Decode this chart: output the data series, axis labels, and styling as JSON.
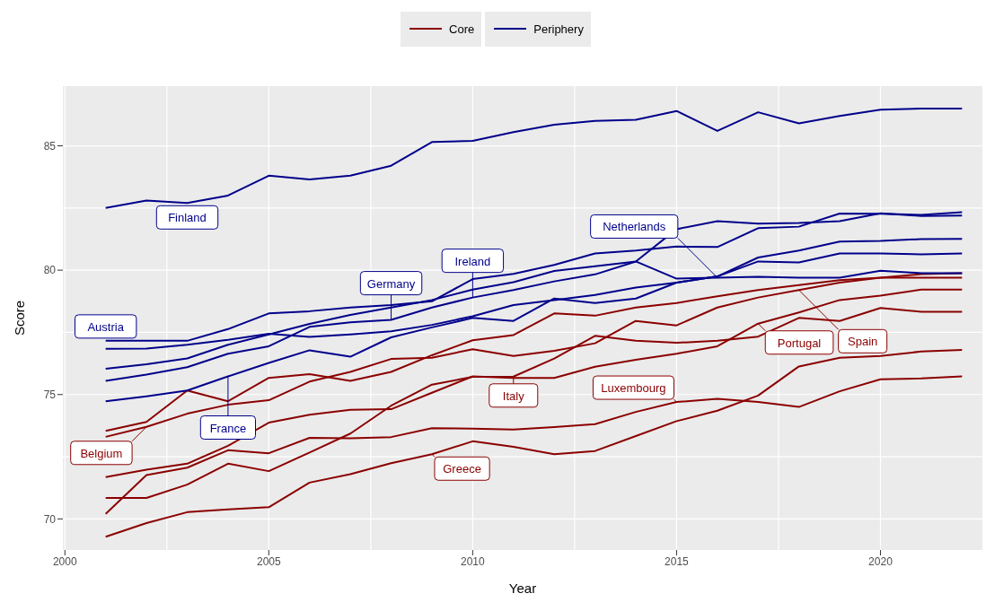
{
  "chart_data": {
    "type": "line",
    "xlabel": "Year",
    "ylabel": "Score",
    "x": [
      2001,
      2002,
      2003,
      2004,
      2005,
      2006,
      2007,
      2008,
      2009,
      2010,
      2011,
      2012,
      2013,
      2014,
      2015,
      2016,
      2017,
      2018,
      2019,
      2020,
      2021,
      2022
    ],
    "series": [
      {
        "name": "Core",
        "color": "#8b0000",
        "values": [
          73.54,
          73.9,
          75.16,
          74.73,
          75.67,
          75.82,
          75.55,
          75.91,
          76.58,
          77.18,
          77.39,
          78.26,
          78.17,
          78.5,
          78.68,
          78.95,
          79.2,
          79.4,
          79.6,
          79.7,
          79.84,
          79.88
        ]
      },
      {
        "color": "#8b0000",
        "values": [
          73.3,
          73.7,
          74.23,
          74.59,
          74.77,
          75.52,
          75.91,
          76.43,
          76.48,
          76.82,
          76.55,
          76.76,
          77.06,
          77.96,
          77.78,
          78.5,
          78.9,
          79.2,
          79.5,
          79.7,
          79.7,
          79.7
        ]
      },
      {
        "color": "#8b0000",
        "values": [
          71.68,
          71.98,
          72.22,
          72.94,
          73.87,
          74.19,
          74.39,
          74.41,
          75.07,
          75.73,
          75.67,
          75.67,
          76.12,
          76.4,
          76.64,
          76.94,
          77.85,
          78.3,
          78.8,
          78.98,
          79.22,
          79.22
        ]
      },
      {
        "color": "#8b0000",
        "values": [
          70.84,
          70.84,
          71.38,
          72.22,
          71.92,
          72.67,
          73.43,
          74.55,
          75.4,
          75.71,
          75.72,
          76.45,
          77.36,
          77.16,
          77.08,
          77.16,
          77.33,
          78.08,
          77.96,
          78.48,
          78.33,
          78.33
        ]
      },
      {
        "color": "#8b0000",
        "values": [
          70.2,
          71.76,
          72.06,
          72.76,
          72.64,
          73.26,
          73.24,
          73.29,
          73.65,
          73.63,
          73.59,
          73.69,
          73.81,
          74.3,
          74.7,
          74.83,
          74.7,
          74.5,
          75.13,
          75.61,
          75.65,
          75.73
        ]
      },
      {
        "color": "#8b0000",
        "values": [
          69.28,
          69.83,
          70.27,
          70.38,
          70.47,
          71.46,
          71.8,
          72.24,
          72.6,
          73.12,
          72.9,
          72.6,
          72.73,
          73.33,
          73.93,
          74.35,
          74.96,
          76.13,
          76.48,
          76.55,
          76.73,
          76.79
        ]
      },
      {
        "name": "Periphery",
        "color": "#00008b",
        "values": [
          82.5,
          82.8,
          82.7,
          83.0,
          83.8,
          83.65,
          83.8,
          84.2,
          85.15,
          85.2,
          85.55,
          85.85,
          86.0,
          86.05,
          86.4,
          85.6,
          86.35,
          85.9,
          86.2,
          86.45,
          86.5,
          86.5
        ]
      },
      {
        "color": "#00008b",
        "values": [
          77.16,
          77.16,
          77.16,
          77.63,
          78.26,
          78.35,
          78.5,
          78.6,
          78.75,
          79.64,
          79.85,
          80.21,
          80.67,
          80.79,
          80.95,
          80.93,
          81.69,
          81.75,
          82.28,
          82.27,
          82.22,
          82.33
        ]
      },
      {
        "color": "#00008b",
        "values": [
          76.04,
          76.22,
          76.45,
          77.0,
          77.42,
          77.84,
          78.2,
          78.5,
          78.8,
          79.22,
          79.52,
          79.97,
          80.16,
          80.35,
          81.65,
          81.97,
          81.87,
          81.9,
          81.97,
          82.29,
          82.18,
          82.2
        ]
      },
      {
        "color": "#00008b",
        "values": [
          75.55,
          75.8,
          76.1,
          76.64,
          76.94,
          77.72,
          77.9,
          78.0,
          78.5,
          78.9,
          79.2,
          79.55,
          79.83,
          80.35,
          79.66,
          79.7,
          79.73,
          79.7,
          79.7,
          79.98,
          79.88,
          79.88
        ]
      },
      {
        "color": "#00008b",
        "values": [
          76.84,
          76.85,
          77.0,
          77.2,
          77.44,
          77.32,
          77.42,
          77.54,
          77.8,
          78.15,
          78.6,
          78.8,
          79.0,
          79.3,
          79.5,
          79.75,
          80.35,
          80.31,
          80.67,
          80.67,
          80.64,
          80.67
        ]
      },
      {
        "color": "#00008b",
        "values": [
          74.73,
          74.93,
          75.16,
          75.73,
          76.27,
          76.78,
          76.52,
          77.3,
          77.7,
          78.08,
          77.96,
          78.86,
          78.68,
          78.86,
          79.5,
          79.75,
          80.51,
          80.79,
          81.15,
          81.18,
          81.25,
          81.26
        ]
      }
    ],
    "annotations": [
      {
        "text": "Finland",
        "x": 2003,
        "y": 82.7
      },
      {
        "text": "Austria",
        "x": 2001,
        "y": 77.16
      },
      {
        "text": "France",
        "x": 2004,
        "y": 75.73
      },
      {
        "text": "Germany",
        "x": 2008,
        "y": 78.0
      },
      {
        "text": "Ireland",
        "x": 2010,
        "y": 78.9
      },
      {
        "text": "Netherlands",
        "x": 2016,
        "y": 79.7
      },
      {
        "text": "Spain",
        "x": 2018,
        "y": 79.2
      },
      {
        "text": "Portugal",
        "x": 2017,
        "y": 77.85
      },
      {
        "text": "Italy",
        "x": 2011,
        "y": 75.72
      },
      {
        "text": "Luxembourg",
        "x": 2015,
        "y": 74.7
      },
      {
        "text": "Greece",
        "x": 2009,
        "y": 72.6
      },
      {
        "text": "Belgium",
        "x": 2002,
        "y": 73.7
      }
    ],
    "xlim": [
      1999.95,
      2022.5
    ],
    "xticks": [
      2000,
      2005,
      2010,
      2015,
      2020
    ],
    "ylim": [
      68.75,
      87.4
    ],
    "yticks": [
      70,
      75,
      80,
      85
    ],
    "grid": true,
    "legend": "top",
    "marker": "none",
    "line_style": "solid"
  }
}
